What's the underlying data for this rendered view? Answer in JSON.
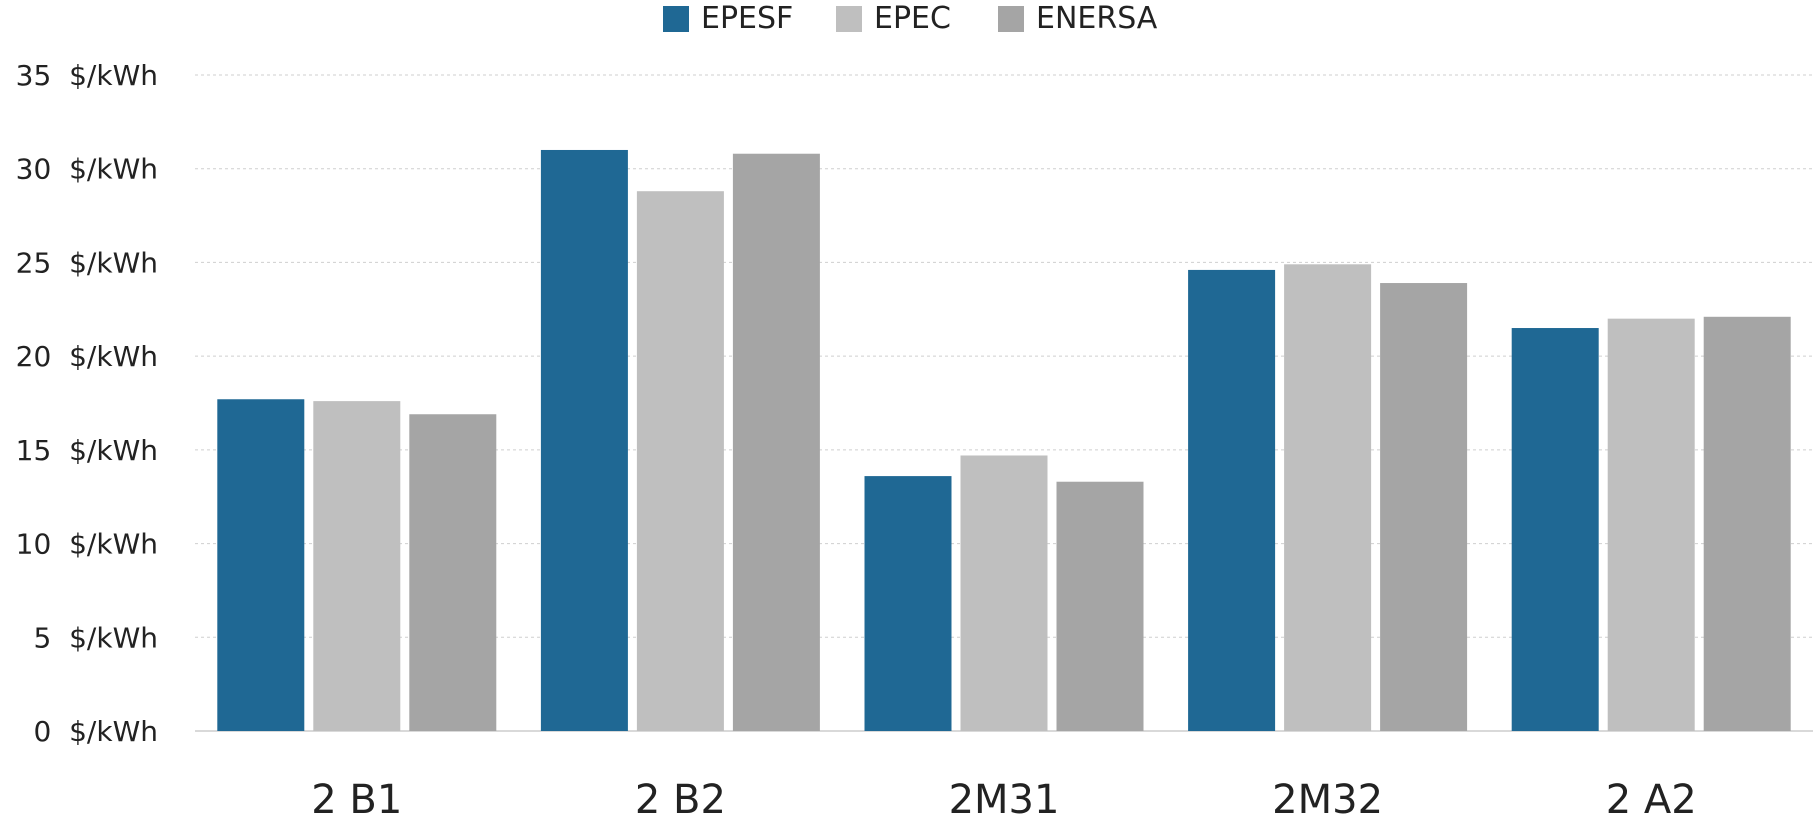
{
  "chart_data": {
    "type": "bar",
    "title": "",
    "xlabel": "",
    "ylabel": "",
    "ylim": [
      0,
      35
    ],
    "y_ticks": [
      0,
      5,
      10,
      15,
      20,
      25,
      30,
      35
    ],
    "y_tick_unit": "$/kWh",
    "grid": true,
    "legend_position": "top-center",
    "categories": [
      "2 B1",
      "2 B2",
      "2M31",
      "2M32",
      "2 A2"
    ],
    "series": [
      {
        "name": "EPESF",
        "color": "#1f6894",
        "values": [
          17.7,
          31.0,
          13.6,
          24.6,
          21.5
        ]
      },
      {
        "name": "EPEC",
        "color": "#bfbfbf",
        "values": [
          17.6,
          28.8,
          14.7,
          24.9,
          22.0
        ]
      },
      {
        "name": "ENERSA",
        "color": "#a5a5a5",
        "values": [
          16.9,
          30.8,
          13.3,
          23.9,
          22.1
        ]
      }
    ]
  }
}
